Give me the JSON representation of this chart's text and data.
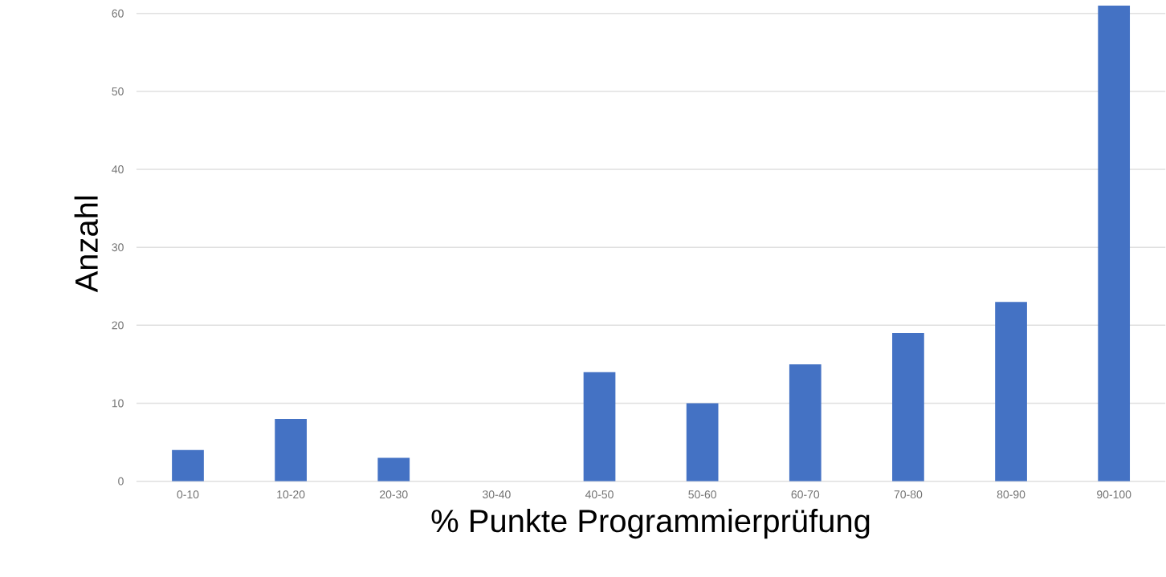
{
  "chart_data": {
    "type": "bar",
    "xlabel": "% Punkte Programmierprüfung",
    "ylabel": "Anzahl",
    "categories": [
      "0-10",
      "10-20",
      "20-30",
      "30-40",
      "40-50",
      "50-60",
      "60-70",
      "70-80",
      "80-90",
      "90-100"
    ],
    "values": [
      4,
      8,
      3,
      0,
      14,
      10,
      15,
      19,
      23,
      61
    ],
    "color": "#4472c4",
    "ylim": [
      0,
      61
    ],
    "yticks": [
      0,
      10,
      20,
      30,
      40,
      50,
      60
    ],
    "grid": "y"
  }
}
